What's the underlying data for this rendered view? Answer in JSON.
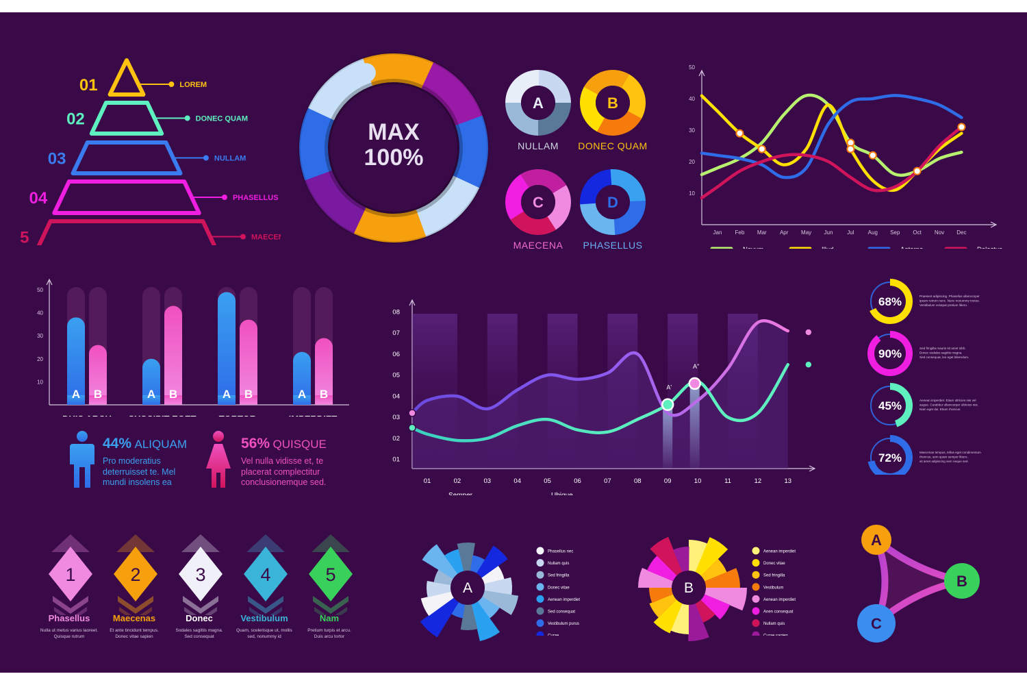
{
  "pyramid": {
    "levels": [
      {
        "num": "01",
        "label": "LOREM",
        "color": "#ffc20e"
      },
      {
        "num": "02",
        "label": "DONEC QUAM",
        "color": "#5ef0bf"
      },
      {
        "num": "03",
        "label": "NULLAM",
        "color": "#3a7cf0"
      },
      {
        "num": "04",
        "label": "PHASELLUS",
        "color": "#f01ee0"
      },
      {
        "num": "05",
        "label": "MAECENA",
        "color": "#d0145c"
      }
    ]
  },
  "big_donut": {
    "line1": "MAX",
    "line2": "100%"
  },
  "small_donuts": [
    {
      "letter": "A",
      "label": "NULLAM",
      "label_color": "#cfd8e6"
    },
    {
      "letter": "B",
      "label": "DONEC QUAM",
      "label_color": "#ffc20e"
    },
    {
      "letter": "C",
      "label": "MAECENA",
      "label_color": "#f06ad0"
    },
    {
      "letter": "D",
      "label": "PHASELLUS",
      "label_color": "#6ab0f4"
    }
  ],
  "gender": {
    "male": {
      "pct": "44%",
      "word": "ALIQUAM",
      "text": [
        "Pro moderatius",
        "deterruisset te. Mel",
        "mundi insolens ea"
      ],
      "color": "#3aa0f0"
    },
    "female": {
      "pct": "56%",
      "word": "QUISQUE",
      "text": [
        "Vel nulla vidisse et, te",
        "placerat complectitur",
        "conclusionemque sed."
      ],
      "color": "#f050c0"
    }
  },
  "steps": [
    {
      "num": "1",
      "title": "Phasellus",
      "desc": [
        "Nulla ut metus varius laoreet.",
        "Quisque rutrum"
      ],
      "color": "#f08ae0",
      "title_color": "#f08ae0"
    },
    {
      "num": "2",
      "title": "Maecenas",
      "desc": [
        "Et ante tincidunt tempus.",
        "Donec vitae sapien"
      ],
      "color": "#f5a00c",
      "title_color": "#f5a00c"
    },
    {
      "num": "3",
      "title": "Donec",
      "desc": [
        "Sodales sagittis magna.",
        "Sed consequat"
      ],
      "color": "#f0f0f8",
      "title_color": "#ffffff"
    },
    {
      "num": "4",
      "title": "Vestibulum",
      "desc": [
        "Quam, scelerisque ut, mollis",
        "sed, nonummy id"
      ],
      "color": "#3ab4d8",
      "title_color": "#3ab4d8"
    },
    {
      "num": "5",
      "title": "Nam",
      "desc": [
        "Pretium turpis et arcu.",
        "Duis arcu tortor"
      ],
      "color": "#3ad05c",
      "title_color": "#3ad05c"
    }
  ],
  "triangle": {
    "nodes": [
      {
        "letter": "A",
        "color": "#f5a00c"
      },
      {
        "letter": "B",
        "color": "#3ad05c"
      },
      {
        "letter": "C",
        "color": "#3a8ef0"
      }
    ]
  },
  "radial_legends": {
    "A": [
      {
        "label": "Phasellus nec",
        "color": "#f4f4f8"
      },
      {
        "label": "Nullam quis",
        "color": "#c8d8f0"
      },
      {
        "label": "Sed fringilla",
        "color": "#9ab8d8"
      },
      {
        "label": "Donec vitae",
        "color": "#6ab4f0"
      },
      {
        "label": "Aenean imperdiet",
        "color": "#2aa0f0"
      },
      {
        "label": "Sed consequat",
        "color": "#5a7898"
      },
      {
        "label": "Vestibulum purus",
        "color": "#2e6ce8"
      },
      {
        "label": "Curae",
        "color": "#1428e0"
      }
    ],
    "B": [
      {
        "label": "Aenean imperdiet",
        "color": "#fff07a"
      },
      {
        "label": "Donec vitae",
        "color": "#ffe000"
      },
      {
        "label": "Sed fringilla",
        "color": "#ffc20e"
      },
      {
        "label": "Vestibulum",
        "color": "#f57c0c"
      },
      {
        "label": "Aenean imperdiet",
        "color": "#f08ae0"
      },
      {
        "label": "Anen consequat",
        "color": "#f01ee0"
      },
      {
        "label": "Nullam quis",
        "color": "#d0145c"
      },
      {
        "label": "Curae sapien",
        "color": "#9a1a9a"
      }
    ]
  },
  "chart_data": [
    {
      "type": "line",
      "id": "monthly",
      "x": [
        "Jan",
        "Feb",
        "Mar",
        "Apr",
        "May",
        "Jun",
        "Jul",
        "Aug",
        "Sep",
        "Oct",
        "Nov",
        "Dec"
      ],
      "ylim": [
        0,
        50
      ],
      "yticks": [
        10,
        20,
        30,
        40,
        50
      ],
      "series": [
        {
          "name": "Novum",
          "color": "#b8f070",
          "values": [
            18,
            21,
            26,
            35,
            41,
            38,
            26,
            22,
            16,
            17,
            21,
            23
          ]
        },
        {
          "name": "Illud",
          "color": "#ffe000",
          "values": [
            36,
            29,
            24,
            19,
            24,
            38,
            24,
            14,
            11,
            17,
            24,
            29
          ]
        },
        {
          "name": "Aeterno",
          "color": "#2e6ce8",
          "values": [
            22,
            21,
            19,
            15,
            18,
            32,
            39,
            40,
            41,
            40,
            38,
            34
          ]
        },
        {
          "name": "Delectus",
          "color": "#d0145c",
          "values": [
            12,
            17,
            20,
            22,
            22,
            20,
            15,
            11,
            12,
            17,
            25,
            31
          ]
        }
      ],
      "legend": "bottom"
    },
    {
      "type": "bar",
      "id": "ab_bars",
      "categories": [
        "DUIS ARCU",
        "SUSCIPIT EGET",
        "TORTOR",
        "IMPERDIET"
      ],
      "ylim": [
        0,
        50
      ],
      "yticks": [
        10,
        20,
        30,
        40,
        50
      ],
      "series": [
        {
          "name": "A",
          "color": "#3a8ef0",
          "values": [
            38,
            20,
            49,
            23
          ]
        },
        {
          "name": "B",
          "color": "#f050c0",
          "values": [
            26,
            43,
            37,
            29
          ]
        }
      ]
    },
    {
      "type": "area",
      "id": "semper_ubique",
      "x": [
        "01",
        "02",
        "03",
        "04",
        "05",
        "06",
        "07",
        "08",
        "09",
        "10",
        "11",
        "12",
        "13"
      ],
      "yticks": [
        "01",
        "02",
        "03",
        "04",
        "05",
        "06",
        "07",
        "08"
      ],
      "ylim": [
        0.5,
        8.5
      ],
      "series": [
        {
          "name": "Semper",
          "color": "#b060f0",
          "values": [
            3.8,
            4.0,
            3.4,
            4.3,
            5.0,
            4.8,
            5.1,
            6.0,
            3.2,
            3.8,
            5.3,
            7.5,
            7.1
          ]
        },
        {
          "name": "Ubique",
          "color": "#4ae0c0",
          "values": [
            2.2,
            1.9,
            2.0,
            2.6,
            2.9,
            2.4,
            2.3,
            2.9,
            3.6,
            4.7,
            3.0,
            3.2,
            5.5
          ]
        }
      ],
      "markers": [
        {
          "label": "A'",
          "x": 8.6,
          "y": 3.6
        },
        {
          "label": "A''",
          "x": 9.5,
          "y": 4.6
        }
      ],
      "legend": "bottom"
    },
    {
      "type": "pie",
      "id": "percent_rings",
      "items": [
        {
          "label": "68%",
          "value": 68,
          "color": "#ffe000"
        },
        {
          "label": "90%",
          "value": 90,
          "color": "#f01ee0"
        },
        {
          "label": "45%",
          "value": 45,
          "color": "#5ef0bf"
        },
        {
          "label": "72%",
          "value": 72,
          "color": "#2e6ce8"
        }
      ],
      "descriptions": [
        [
          "Praesent adipiscing. Phasellus ullamcorper",
          "ipsum rutrum nunc. Nunc nonummy metus.",
          "Vestibulum volutpat pretium libero."
        ],
        [
          "Sed fringilla mauris sit amet nibh.",
          "Donec sodales sagittis magna.",
          "Sed consequat, leo eget bibendum."
        ],
        [
          "Aenean imperdiet. Etiam ultricies nisi vel",
          "augue. Curabitur ullamcorper ultricies nisi.",
          "Nam eget dui. Etiam rhoncus."
        ],
        [
          "Maecenas tempus, tellus eget condimentum",
          "rhoncus, sem quam semper libero,",
          "sit amet adipiscing sem neque sed."
        ]
      ]
    }
  ]
}
